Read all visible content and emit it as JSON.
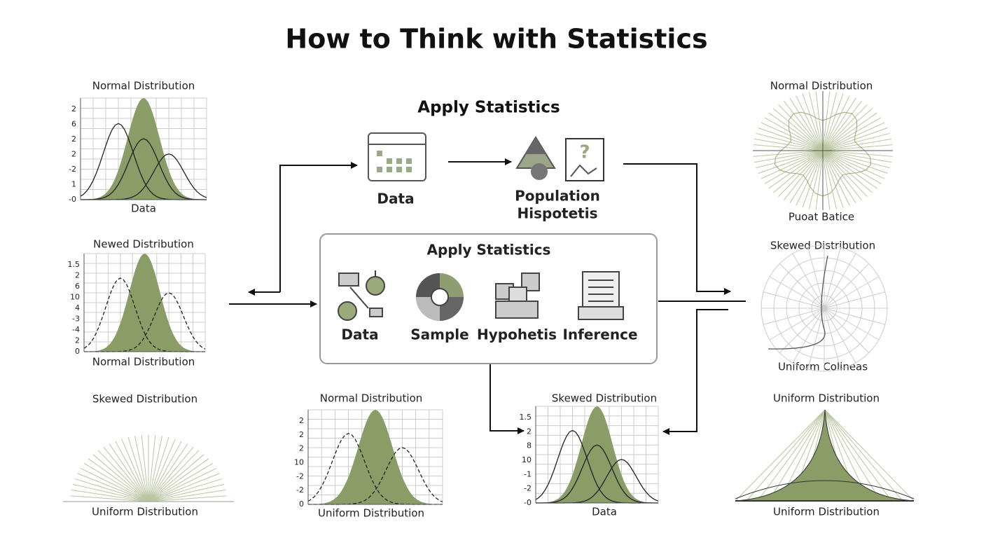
{
  "title": "How to Think with Statistics",
  "flow": {
    "heading": "Apply Statistics",
    "nodes": [
      {
        "label": [
          "Data"
        ]
      },
      {
        "label": [
          "Population",
          "Hispotetis"
        ]
      }
    ]
  },
  "center_box": {
    "title": "Apply Statistics",
    "items": [
      "Data",
      "Sample",
      "Hypohetis",
      "Inference"
    ]
  },
  "panels": [
    {
      "title": "Normal Distribution",
      "ticks": [
        "2",
        "6",
        "2",
        "2",
        "-2",
        "1",
        "-0"
      ],
      "caption": "Data"
    },
    {
      "title": "Newed Distribution",
      "ticks": [
        "1.5",
        "2",
        "6",
        "10",
        "4",
        "-3",
        "-4",
        "2",
        "0"
      ],
      "caption": "Normal Distribution"
    },
    {
      "title": "Skewed Distribution",
      "caption": "Uniform Distribution"
    },
    {
      "title": "Normal Distribution",
      "ticks": [
        "2",
        "2",
        "2",
        "10",
        "-2",
        "-2",
        "0"
      ],
      "caption": "Uniform Distribution"
    },
    {
      "title": "Skewed Distribution",
      "ticks": [
        "1.5",
        "2",
        "8",
        "10",
        "-1",
        "-2",
        "-0"
      ],
      "caption": "Data"
    },
    {
      "title": "Normal Distribution",
      "caption": "Puoat Batice"
    },
    {
      "title": "Skewed Distribution",
      "caption": "Uniform Colineas"
    },
    {
      "title": "Uniform Distribution",
      "caption": "Uniform Distribution"
    }
  ]
}
